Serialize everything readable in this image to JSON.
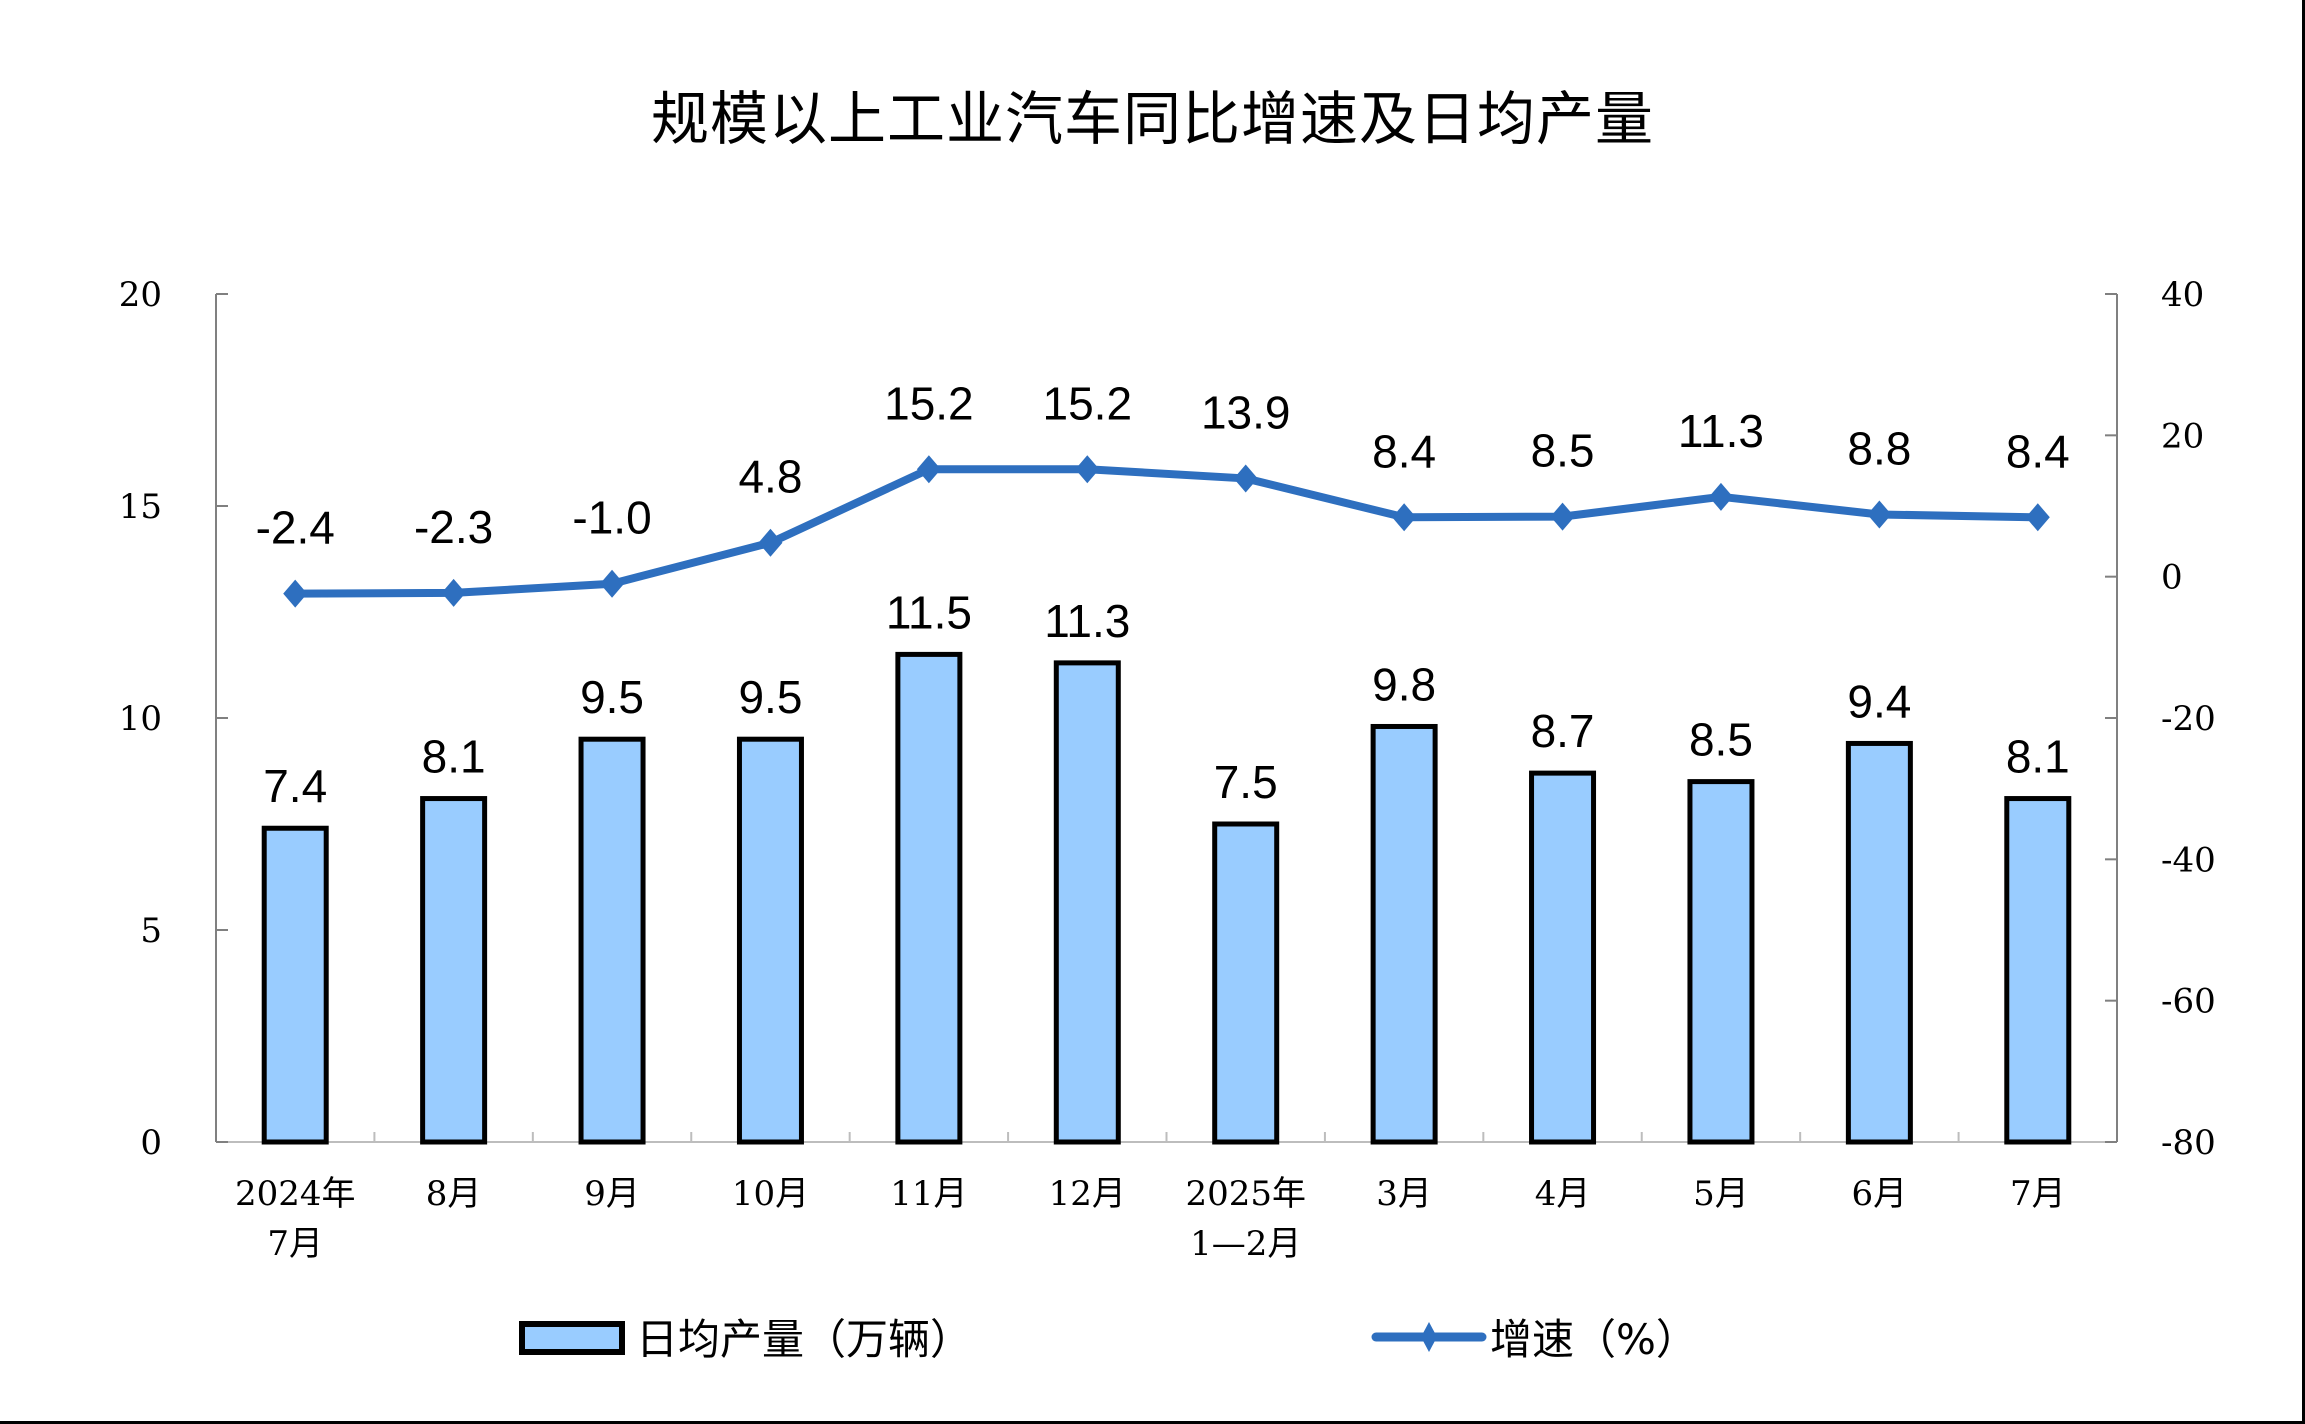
{
  "title": "规模以上工业汽车同比增速及日均产量",
  "colors": {
    "bar_fill": "#99CCFF",
    "bar_stroke": "#000000",
    "line": "#2E6FBF",
    "axis": "#808080"
  },
  "legend": {
    "bar_label": "日均产量（万辆）",
    "line_label": "增速（%）"
  },
  "chart_data": {
    "type": "bar+line",
    "title": "规模以上工业汽车同比增速及日均产量",
    "categories": [
      "2024年\n7月",
      "8月",
      "9月",
      "10月",
      "11月",
      "12月",
      "2025年\n1—2月",
      "3月",
      "4月",
      "5月",
      "6月",
      "7月"
    ],
    "category_lines": [
      [
        "2024年",
        "7月"
      ],
      [
        "8月"
      ],
      [
        "9月"
      ],
      [
        "10月"
      ],
      [
        "11月"
      ],
      [
        "12月"
      ],
      [
        "2025年",
        "1—2月"
      ],
      [
        "3月"
      ],
      [
        "4月"
      ],
      [
        "5月"
      ],
      [
        "6月"
      ],
      [
        "7月"
      ]
    ],
    "series": [
      {
        "name": "日均产量（万辆）",
        "type": "bar",
        "axis": "left",
        "values": [
          7.4,
          8.1,
          9.5,
          9.5,
          11.5,
          11.3,
          7.5,
          9.8,
          8.7,
          8.5,
          9.4,
          8.1
        ],
        "labels": [
          "7.4",
          "8.1",
          "9.5",
          "9.5",
          "11.5",
          "11.3",
          "7.5",
          "9.8",
          "8.7",
          "8.5",
          "9.4",
          "8.1"
        ]
      },
      {
        "name": "增速（%）",
        "type": "line",
        "axis": "right",
        "marker": "diamond",
        "values": [
          -2.4,
          -2.3,
          -1.0,
          4.8,
          15.2,
          15.2,
          13.9,
          8.4,
          8.5,
          11.3,
          8.8,
          8.4
        ],
        "labels": [
          "-2.4",
          "-2.3",
          "-1.0",
          "4.8",
          "15.2",
          "15.2",
          "13.9",
          "8.4",
          "8.5",
          "11.3",
          "8.8",
          "8.4"
        ]
      }
    ],
    "y_left": {
      "min": 0,
      "max": 20,
      "ticks": [
        0,
        5,
        10,
        15,
        20
      ]
    },
    "y_right": {
      "min": -80,
      "max": 40,
      "ticks": [
        -80,
        -60,
        -40,
        -20,
        0,
        20,
        40
      ]
    },
    "xlabel": "",
    "ylabel_left": "",
    "ylabel_right": "",
    "grid": false,
    "legend_position": "bottom"
  }
}
